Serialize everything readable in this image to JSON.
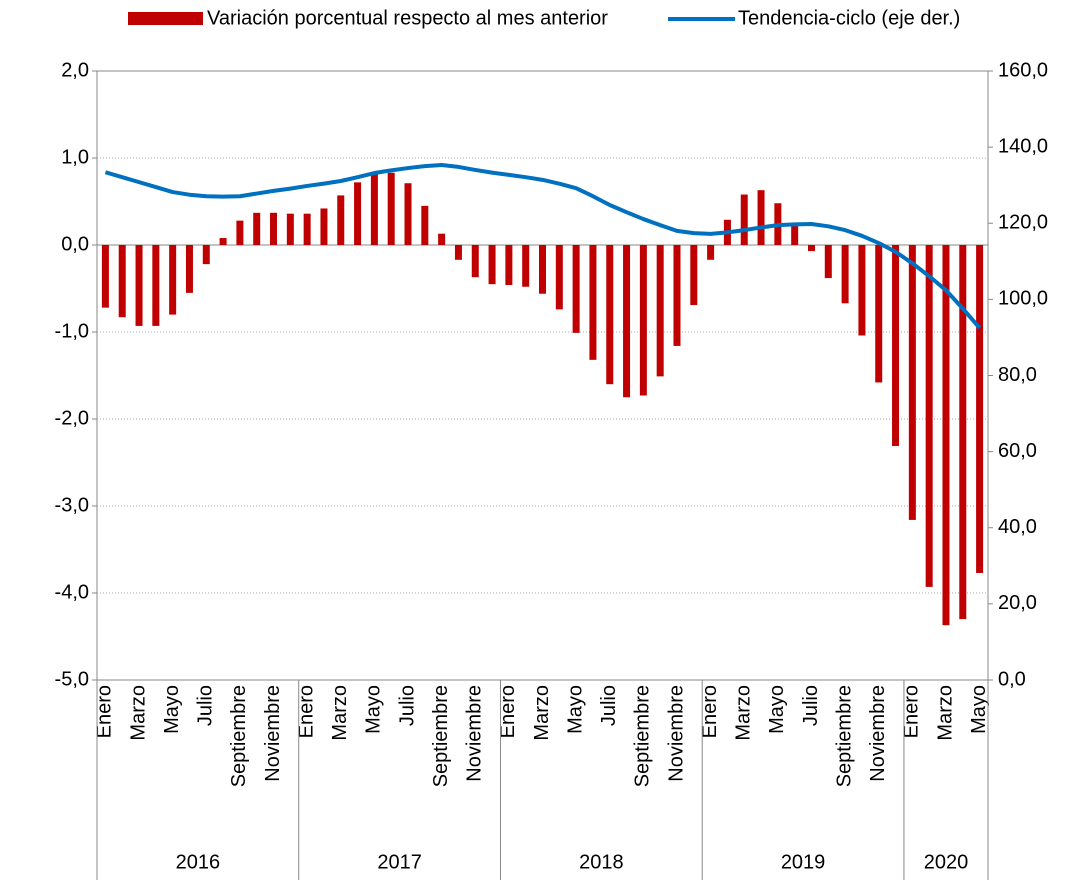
{
  "chart_data": {
    "type": "bar-line",
    "categories": [
      "Enero",
      null,
      "Marzo",
      null,
      "Mayo",
      null,
      "Julio",
      null,
      "Septiembre",
      null,
      "Noviembre",
      null,
      "Enero",
      null,
      "Marzo",
      null,
      "Mayo",
      null,
      "Julio",
      null,
      "Septiembre",
      null,
      "Noviembre",
      null,
      "Enero",
      null,
      "Marzo",
      null,
      "Mayo",
      null,
      "Julio",
      null,
      "Septiembre",
      null,
      "Noviembre",
      null,
      "Enero",
      null,
      "Marzo",
      null,
      "Mayo",
      null,
      "Julio",
      null,
      "Septiembre",
      null,
      "Noviembre",
      null,
      "Enero",
      null,
      "Marzo",
      null,
      "Mayo"
    ],
    "years": [
      "2016",
      "2017",
      "2018",
      "2019",
      "2020"
    ],
    "series": [
      {
        "name": "Variación porcentual respecto al mes anterior",
        "type": "bar",
        "color": "#c00000",
        "values": [
          -0.72,
          -0.83,
          -0.93,
          -0.93,
          -0.8,
          -0.55,
          -0.22,
          0.08,
          0.28,
          0.37,
          0.37,
          0.36,
          0.36,
          0.42,
          0.57,
          0.72,
          0.83,
          0.83,
          0.71,
          0.45,
          0.13,
          -0.17,
          -0.37,
          -0.45,
          -0.46,
          -0.48,
          -0.56,
          -0.74,
          -1.01,
          -1.32,
          -1.6,
          -1.75,
          -1.73,
          -1.51,
          -1.16,
          -0.69,
          -0.17,
          0.29,
          0.58,
          0.63,
          0.48,
          0.24,
          -0.07,
          -0.38,
          -0.67,
          -1.04,
          -1.58,
          -2.31,
          -3.16,
          -3.93,
          -4.37,
          -4.3,
          -3.77
        ]
      },
      {
        "name": "Tendencia-ciclo (eje der.)",
        "type": "line",
        "axis": "y2",
        "color": "#0070c0",
        "values": [
          133.4,
          132.1,
          130.8,
          129.5,
          128.2,
          127.5,
          127.1,
          127.0,
          127.1,
          127.8,
          128.5,
          129.1,
          129.8,
          130.4,
          131.1,
          132.1,
          133.2,
          133.9,
          134.5,
          135.0,
          135.3,
          134.8,
          134.0,
          133.3,
          132.7,
          132.1,
          131.4,
          130.4,
          129.2,
          127.1,
          124.8,
          122.9,
          121.1,
          119.5,
          118.0,
          117.4,
          117.2,
          117.6,
          118.2,
          118.9,
          119.5,
          119.7,
          119.8,
          119.2,
          118.2,
          116.7,
          114.8,
          112.5,
          109.5,
          106.1,
          102.4,
          97.6,
          92.5
        ]
      }
    ],
    "ylim": [
      -5,
      2
    ],
    "yticks": [
      {
        "value": -5,
        "label": "-5,0"
      },
      {
        "value": -4,
        "label": "-4,0"
      },
      {
        "value": -3,
        "label": "-3,0"
      },
      {
        "value": -2,
        "label": "-2,0"
      },
      {
        "value": -1,
        "label": "-1,0"
      },
      {
        "value": 0,
        "label": "0,0"
      },
      {
        "value": 1,
        "label": "1,0"
      },
      {
        "value": 2,
        "label": "2,0"
      }
    ],
    "y2lim": [
      0,
      160
    ],
    "y2ticks": [
      {
        "value": 0,
        "label": "0,0"
      },
      {
        "value": 20,
        "label": "20,0"
      },
      {
        "value": 40,
        "label": "40,0"
      },
      {
        "value": 60,
        "label": "60,0"
      },
      {
        "value": 80,
        "label": "80,0"
      },
      {
        "value": 100,
        "label": "100,0"
      },
      {
        "value": 120,
        "label": "120,0"
      },
      {
        "value": 140,
        "label": "140,0"
      },
      {
        "value": 160,
        "label": "160,0"
      }
    ],
    "grid": true
  }
}
